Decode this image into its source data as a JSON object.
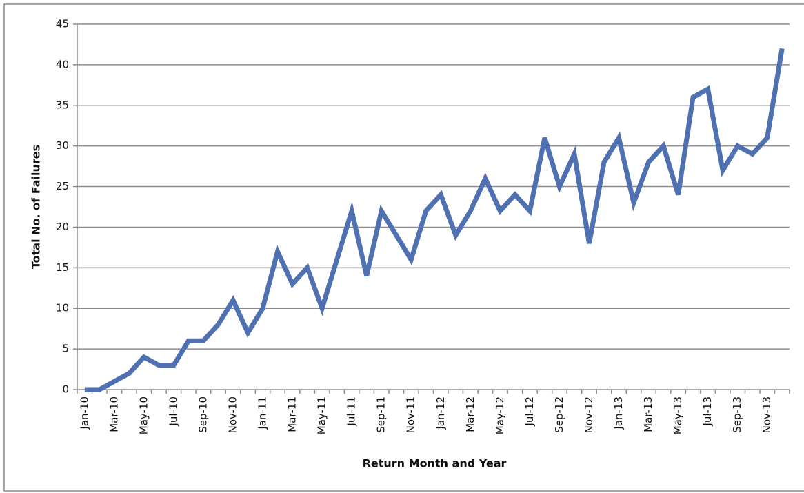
{
  "chart_data": {
    "type": "line",
    "y_label": "Total No. of Failures",
    "x_label": "Return Month and Year",
    "categories": [
      "Jan-10",
      null,
      "Mar-10",
      null,
      "May-10",
      null,
      "Jul-10",
      null,
      "Sep-10",
      null,
      "Nov-10",
      null,
      "Jan-11",
      null,
      "Mar-11",
      null,
      "May-11",
      null,
      "Jul-11",
      null,
      "Sep-11",
      null,
      "Nov-11",
      null,
      "Jan-12",
      null,
      "Mar-12",
      null,
      "May-12",
      null,
      "Jul-12",
      null,
      "Sep-12",
      null,
      "Nov-12",
      null,
      "Jan-13",
      null,
      "Mar-13",
      null,
      "May-13",
      null,
      "Jul-13",
      null,
      "Sep-13",
      null,
      "Nov-13",
      null
    ],
    "series": [
      {
        "color": "#4f71b1",
        "values": [
          0,
          0,
          1,
          2,
          4,
          3,
          3,
          6,
          6,
          8,
          11,
          7,
          10,
          17,
          13,
          15,
          10,
          16,
          22,
          14,
          22,
          19,
          16,
          22,
          24,
          19,
          22,
          26,
          22,
          24,
          22,
          31,
          25,
          29,
          18,
          28,
          31,
          23,
          28,
          30,
          24,
          36,
          37,
          27,
          30,
          29,
          31,
          42
        ]
      }
    ],
    "ylim": [
      0,
      45
    ],
    "yticks": [
      0,
      5,
      10,
      15,
      20,
      25,
      30,
      35,
      40,
      45
    ],
    "grid": true
  }
}
